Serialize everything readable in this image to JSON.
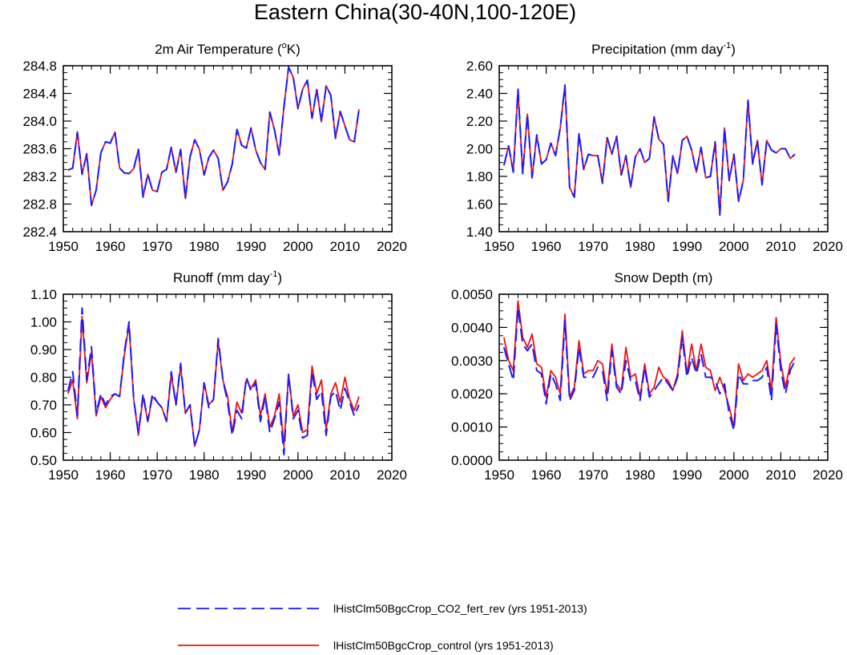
{
  "figure": {
    "title": "Eastern China(30-40N,100-120E)"
  },
  "legend": [
    {
      "name": "lHistClm50BgcCrop_CO2_fert_rev (yrs 1951-2013)",
      "color": "#1a1aff",
      "style": "dashed"
    },
    {
      "name": "lHistClm50BgcCrop_control (yrs 1951-2013)",
      "color": "#ee1111",
      "style": "solid"
    }
  ],
  "chart_data": [
    {
      "type": "line",
      "title_main": "2m Air Temperature (",
      "title_sup": "o",
      "title_end": "K)",
      "x_start": 1951,
      "xlim": [
        1950,
        2020
      ],
      "xticks": [
        "1950",
        "1960",
        "1970",
        "1980",
        "1990",
        "2000",
        "2010",
        "2020"
      ],
      "ylim": [
        282.4,
        284.8
      ],
      "yticks": [
        "282.4",
        "282.8",
        "283.2",
        "283.6",
        "284.0",
        "284.4",
        "284.8"
      ],
      "series": [
        {
          "values": [
            283.29,
            283.32,
            283.84,
            283.23,
            283.53,
            282.78,
            283.0,
            283.54,
            283.7,
            283.68,
            283.84,
            283.32,
            283.25,
            283.24,
            283.31,
            283.59,
            282.9,
            283.23,
            283.0,
            282.98,
            283.26,
            283.3,
            283.62,
            283.26,
            283.59,
            282.88,
            283.48,
            283.73,
            283.59,
            283.22,
            283.47,
            283.58,
            283.46,
            283.0,
            283.12,
            283.38,
            283.88,
            283.65,
            283.61,
            283.9,
            283.58,
            283.4,
            283.3,
            284.13,
            283.87,
            283.51,
            284.2,
            284.78,
            284.63,
            284.18,
            284.46,
            284.59,
            284.04,
            284.46,
            283.99,
            284.51,
            284.37,
            283.75,
            284.14,
            283.93,
            283.73,
            283.7,
            284.17
          ]
        },
        {
          "values": [
            283.29,
            283.32,
            283.84,
            283.23,
            283.53,
            282.78,
            283.0,
            283.54,
            283.7,
            283.68,
            283.84,
            283.32,
            283.25,
            283.24,
            283.31,
            283.59,
            282.9,
            283.23,
            283.0,
            282.98,
            283.26,
            283.3,
            283.62,
            283.26,
            283.59,
            282.88,
            283.48,
            283.73,
            283.59,
            283.22,
            283.47,
            283.58,
            283.46,
            283.0,
            283.12,
            283.38,
            283.88,
            283.65,
            283.61,
            283.9,
            283.58,
            283.4,
            283.3,
            284.13,
            283.87,
            283.51,
            284.2,
            284.78,
            284.63,
            284.18,
            284.46,
            284.59,
            284.04,
            284.46,
            283.99,
            284.51,
            284.37,
            283.75,
            284.14,
            283.93,
            283.73,
            283.7,
            284.17
          ]
        }
      ]
    },
    {
      "type": "line",
      "title_main": "Precipitation (mm day",
      "title_sup": "-1",
      "title_end": ")",
      "x_start": 1951,
      "xlim": [
        1950,
        2020
      ],
      "xticks": [
        "1950",
        "1960",
        "1970",
        "1980",
        "1990",
        "2000",
        "2010",
        "2020"
      ],
      "ylim": [
        1.4,
        2.6
      ],
      "yticks": [
        "1.40",
        "1.60",
        "1.80",
        "2.00",
        "2.20",
        "2.40",
        "2.60"
      ],
      "series": [
        {
          "values": [
            1.88,
            2.02,
            1.83,
            2.43,
            1.82,
            2.25,
            1.79,
            2.1,
            1.89,
            1.92,
            2.04,
            1.95,
            2.15,
            2.46,
            1.72,
            1.65,
            2.11,
            1.85,
            1.96,
            1.95,
            1.95,
            1.75,
            2.08,
            1.96,
            2.09,
            1.81,
            1.95,
            1.72,
            1.94,
            2.0,
            1.9,
            1.93,
            2.23,
            2.07,
            2.03,
            1.62,
            1.95,
            1.82,
            2.06,
            2.09,
            1.99,
            1.83,
            2.01,
            1.79,
            1.8,
            2.05,
            1.52,
            2.15,
            1.77,
            1.96,
            1.62,
            1.77,
            2.35,
            1.89,
            2.06,
            1.74,
            2.06,
            1.99,
            1.97,
            2.0,
            2.0,
            1.93,
            1.96
          ]
        },
        {
          "values": [
            1.88,
            2.02,
            1.83,
            2.43,
            1.82,
            2.25,
            1.79,
            2.1,
            1.89,
            1.92,
            2.04,
            1.95,
            2.15,
            2.46,
            1.72,
            1.65,
            2.11,
            1.85,
            1.96,
            1.95,
            1.95,
            1.75,
            2.08,
            1.96,
            2.09,
            1.81,
            1.95,
            1.72,
            1.94,
            2.0,
            1.9,
            1.93,
            2.23,
            2.07,
            2.03,
            1.62,
            1.95,
            1.82,
            2.06,
            2.09,
            1.99,
            1.83,
            2.01,
            1.79,
            1.8,
            2.05,
            1.52,
            2.15,
            1.77,
            1.96,
            1.62,
            1.77,
            2.35,
            1.89,
            2.06,
            1.74,
            2.06,
            1.99,
            1.97,
            2.0,
            2.0,
            1.93,
            1.96
          ]
        }
      ]
    },
    {
      "type": "line",
      "title_main": "Runoff (mm day",
      "title_sup": "-1",
      "title_end": ")",
      "x_start": 1951,
      "xlim": [
        1950,
        2020
      ],
      "xticks": [
        "1950",
        "1960",
        "1970",
        "1980",
        "1990",
        "2000",
        "2010",
        "2020"
      ],
      "ylim": [
        0.5,
        1.1
      ],
      "yticks": [
        "0.50",
        "0.60",
        "0.70",
        "0.80",
        "0.90",
        "1.00",
        "1.10"
      ],
      "series": [
        {
          "values": [
            0.75,
            0.82,
            0.66,
            1.05,
            0.79,
            0.91,
            0.67,
            0.74,
            0.7,
            0.73,
            0.74,
            0.73,
            0.89,
            1.0,
            0.72,
            0.6,
            0.74,
            0.64,
            0.74,
            0.71,
            0.69,
            0.64,
            0.82,
            0.7,
            0.85,
            0.67,
            0.7,
            0.55,
            0.61,
            0.78,
            0.69,
            0.72,
            0.94,
            0.79,
            0.71,
            0.59,
            0.68,
            0.65,
            0.8,
            0.75,
            0.78,
            0.64,
            0.73,
            0.6,
            0.65,
            0.71,
            0.52,
            0.81,
            0.65,
            0.68,
            0.58,
            0.59,
            0.82,
            0.72,
            0.75,
            0.59,
            0.73,
            0.75,
            0.68,
            0.76,
            0.71,
            0.66,
            0.7
          ]
        },
        {
          "values": [
            0.74,
            0.79,
            0.65,
            1.02,
            0.78,
            0.89,
            0.66,
            0.73,
            0.69,
            0.72,
            0.74,
            0.73,
            0.88,
            0.99,
            0.72,
            0.59,
            0.73,
            0.64,
            0.73,
            0.71,
            0.69,
            0.64,
            0.81,
            0.7,
            0.84,
            0.67,
            0.7,
            0.55,
            0.61,
            0.78,
            0.7,
            0.72,
            0.93,
            0.79,
            0.73,
            0.6,
            0.71,
            0.67,
            0.79,
            0.76,
            0.79,
            0.66,
            0.74,
            0.62,
            0.66,
            0.74,
            0.55,
            0.81,
            0.66,
            0.7,
            0.6,
            0.61,
            0.84,
            0.74,
            0.79,
            0.61,
            0.74,
            0.78,
            0.71,
            0.8,
            0.72,
            0.68,
            0.73
          ]
        }
      ]
    },
    {
      "type": "line",
      "title_main": "Snow Depth (m)",
      "title_sup": "",
      "title_end": "",
      "x_start": 1951,
      "xlim": [
        1950,
        2020
      ],
      "xticks": [
        "1950",
        "1960",
        "1970",
        "1980",
        "1990",
        "2000",
        "2010",
        "2020"
      ],
      "ylim": [
        0.0,
        0.005
      ],
      "yticks": [
        "0.0000",
        "0.0010",
        "0.0020",
        "0.0030",
        "0.0040",
        "0.0050"
      ],
      "series": [
        {
          "values": [
            0.0034,
            0.0029,
            0.0024,
            0.0046,
            0.0035,
            0.0033,
            0.0035,
            0.0027,
            0.0026,
            0.0017,
            0.0026,
            0.0023,
            0.0018,
            0.0042,
            0.0018,
            0.0021,
            0.0034,
            0.0025,
            0.0025,
            0.0025,
            0.0028,
            0.0027,
            0.0018,
            0.0033,
            0.0022,
            0.002,
            0.003,
            0.0024,
            0.0024,
            0.0018,
            0.0028,
            0.0019,
            0.0021,
            0.0023,
            0.0025,
            0.0023,
            0.0021,
            0.0025,
            0.0037,
            0.0025,
            0.0031,
            0.0026,
            0.0032,
            0.0025,
            0.0025,
            0.0024,
            0.002,
            0.0023,
            0.0014,
            0.0009,
            0.0026,
            0.0023,
            0.0023,
            0.0024,
            0.0024,
            0.0025,
            0.0028,
            0.0018,
            0.0041,
            0.0027,
            0.002,
            0.0027,
            0.003
          ]
        },
        {
          "values": [
            0.0037,
            0.003,
            0.0027,
            0.0048,
            0.0037,
            0.0034,
            0.0038,
            0.0029,
            0.0028,
            0.0019,
            0.0027,
            0.0025,
            0.002,
            0.0044,
            0.0019,
            0.0022,
            0.0036,
            0.0026,
            0.0027,
            0.0027,
            0.003,
            0.0029,
            0.002,
            0.0035,
            0.0023,
            0.0021,
            0.0034,
            0.0025,
            0.0026,
            0.0019,
            0.0029,
            0.002,
            0.0022,
            0.0028,
            0.0025,
            0.0024,
            0.0021,
            0.0026,
            0.0039,
            0.0026,
            0.0035,
            0.0027,
            0.0035,
            0.0028,
            0.0027,
            0.0021,
            0.0025,
            0.0021,
            0.0016,
            0.001,
            0.0029,
            0.0024,
            0.0026,
            0.0025,
            0.0026,
            0.0027,
            0.003,
            0.0021,
            0.0043,
            0.0029,
            0.0022,
            0.0029,
            0.0031
          ]
        }
      ]
    }
  ]
}
